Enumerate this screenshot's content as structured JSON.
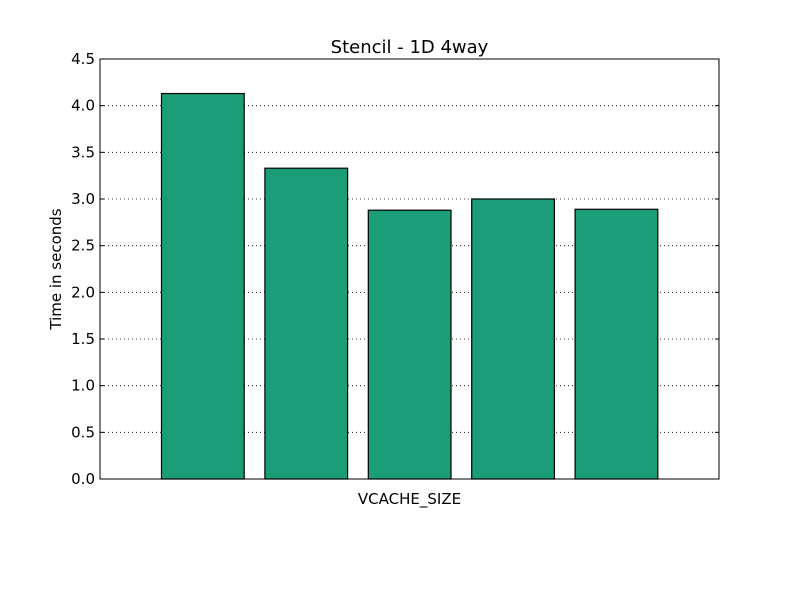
{
  "chart_data": {
    "type": "bar",
    "title": "Stencil - 1D 4way",
    "xlabel": "VCACHE_SIZE",
    "ylabel": "Time in seconds",
    "categories": [
      "",
      "",
      "",
      "",
      ""
    ],
    "values": [
      4.13,
      3.33,
      2.88,
      3.0,
      2.89
    ],
    "ylim": [
      0,
      4.5
    ],
    "yticks": [
      "0.0",
      "0.5",
      "1.0",
      "1.5",
      "2.0",
      "2.5",
      "3.0",
      "3.5",
      "4.0",
      "4.5"
    ],
    "grid": "horizontal-dotted",
    "bar_color": "#1b9e77",
    "edge_color": "#000000"
  }
}
